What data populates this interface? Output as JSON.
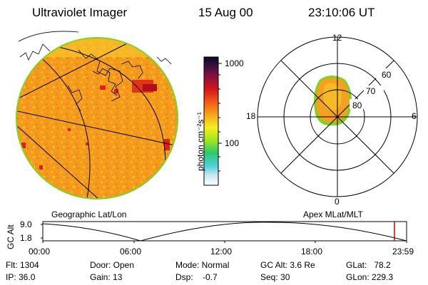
{
  "header": {
    "instrument": "Ultraviolet Imager",
    "date": "15 Aug 00",
    "time": "23:10:06 UT"
  },
  "colorbar": {
    "unit_label": "photon cm⁻²s⁻¹",
    "tick_1000": "1000",
    "tick_100": "100"
  },
  "geo_panel": {
    "label": "Geographic Lat/Lon"
  },
  "polar_panel": {
    "label": "Apex MLat/MLT",
    "mlt_labels": {
      "top": "12",
      "left": "18",
      "right": "6",
      "bottom": "0"
    },
    "lat_labels": [
      "60",
      "70",
      "80"
    ]
  },
  "altitude_plot": {
    "ylabel": "GC Alt",
    "y_ticks": [
      "9.0",
      "1.8"
    ],
    "x_ticks": [
      "00:00",
      "06:00",
      "12:00",
      "18:00",
      "23:59"
    ],
    "current_marker_time": "23:10"
  },
  "info": {
    "flt": "Flt: 1304",
    "ip": "IP: 36.0",
    "door": "Door: Open",
    "gain": "Gain: 13",
    "mode": "Mode: Normal",
    "dsp": "Dsp:    -0.7",
    "gc_alt": "GC Alt: 3.6 Re",
    "seq": "Seq: 30",
    "glat": "GLat:   78.2",
    "glon": "GLon: 229.3"
  },
  "colors": {
    "disk_base": "#f4a020",
    "disk_hot": "#e0201a",
    "disk_edge": "#7ed321",
    "marker": "#cc0000"
  }
}
